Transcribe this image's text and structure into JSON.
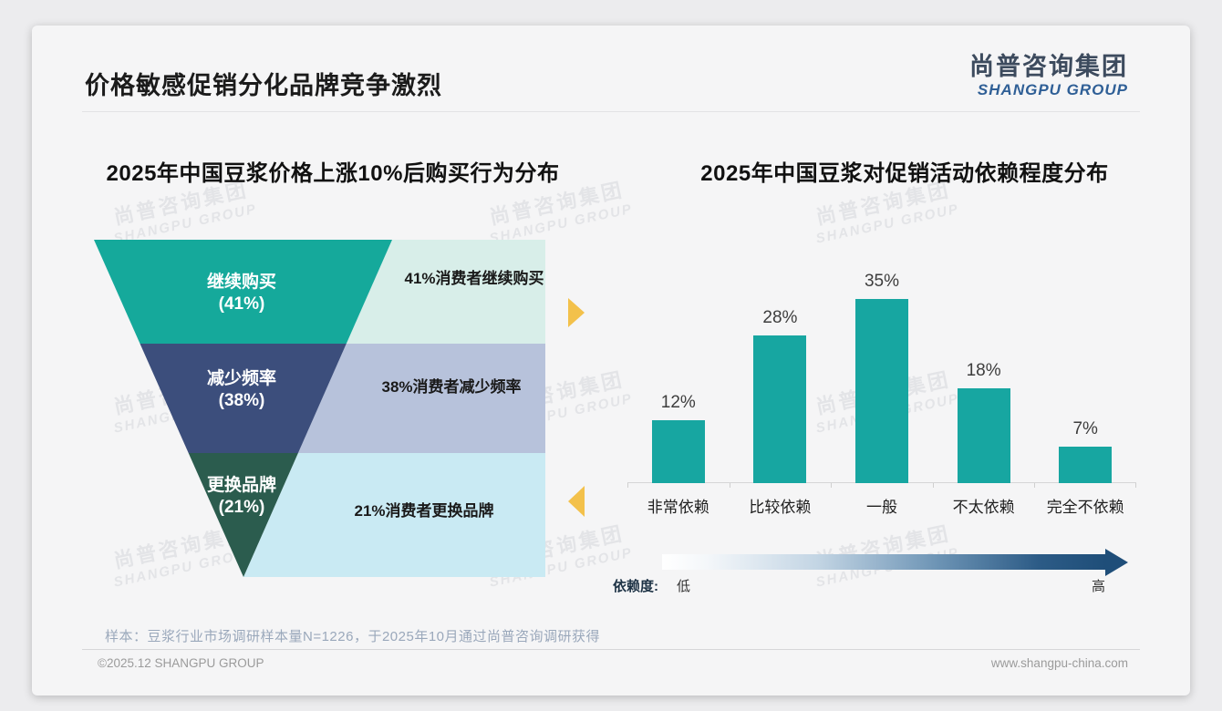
{
  "slide": {
    "title": "价格敏感促销分化品牌竞争激烈",
    "logo": {
      "cn": "尚普咨询集团",
      "en": "SHANGPU GROUP"
    },
    "watermark": {
      "line1": "尚普咨询集团",
      "line2": "SHANGPU GROUP"
    },
    "sample_note": "样本：豆浆行业市场调研样本量N=1226，于2025年10月通过尚普咨询调研获得",
    "footer": {
      "left": "©2025.12 SHANGPU GROUP",
      "right": "www.shangpu-china.com"
    }
  },
  "chart_data": [
    {
      "type": "funnel",
      "title": "2025年中国豆浆价格上涨10%后购买行为分布",
      "categories": [
        "继续购买",
        "减少频率",
        "更换品牌"
      ],
      "values": [
        41,
        38,
        21
      ],
      "value_labels": [
        "(41%)",
        "(38%)",
        "(21%)"
      ],
      "annotations": [
        "41%消费者继续购买",
        "38%消费者减少频率",
        "21%消费者更换品牌"
      ],
      "segment_colors": [
        "#15a99b",
        "#3c4e7c",
        "#2b5c4e"
      ],
      "annotation_bg_colors": [
        "#d8eee9",
        "#b7c2db",
        "#c9eaf3"
      ],
      "arrow_color": "#f3c14b"
    },
    {
      "type": "bar",
      "title": "2025年中国豆浆对促销活动依赖程度分布",
      "categories": [
        "非常依赖",
        "比较依赖",
        "一般",
        "不太依赖",
        "完全不依赖"
      ],
      "values": [
        12,
        28,
        35,
        18,
        7
      ],
      "value_labels": [
        "12%",
        "28%",
        "35%",
        "18%",
        "7%"
      ],
      "bar_color": "#17a6a1",
      "ylim": [
        0,
        40
      ],
      "grid": false,
      "legend_position": "none",
      "dependency_axis": {
        "label": "依赖度:",
        "low": "低",
        "high": "高"
      }
    }
  ]
}
